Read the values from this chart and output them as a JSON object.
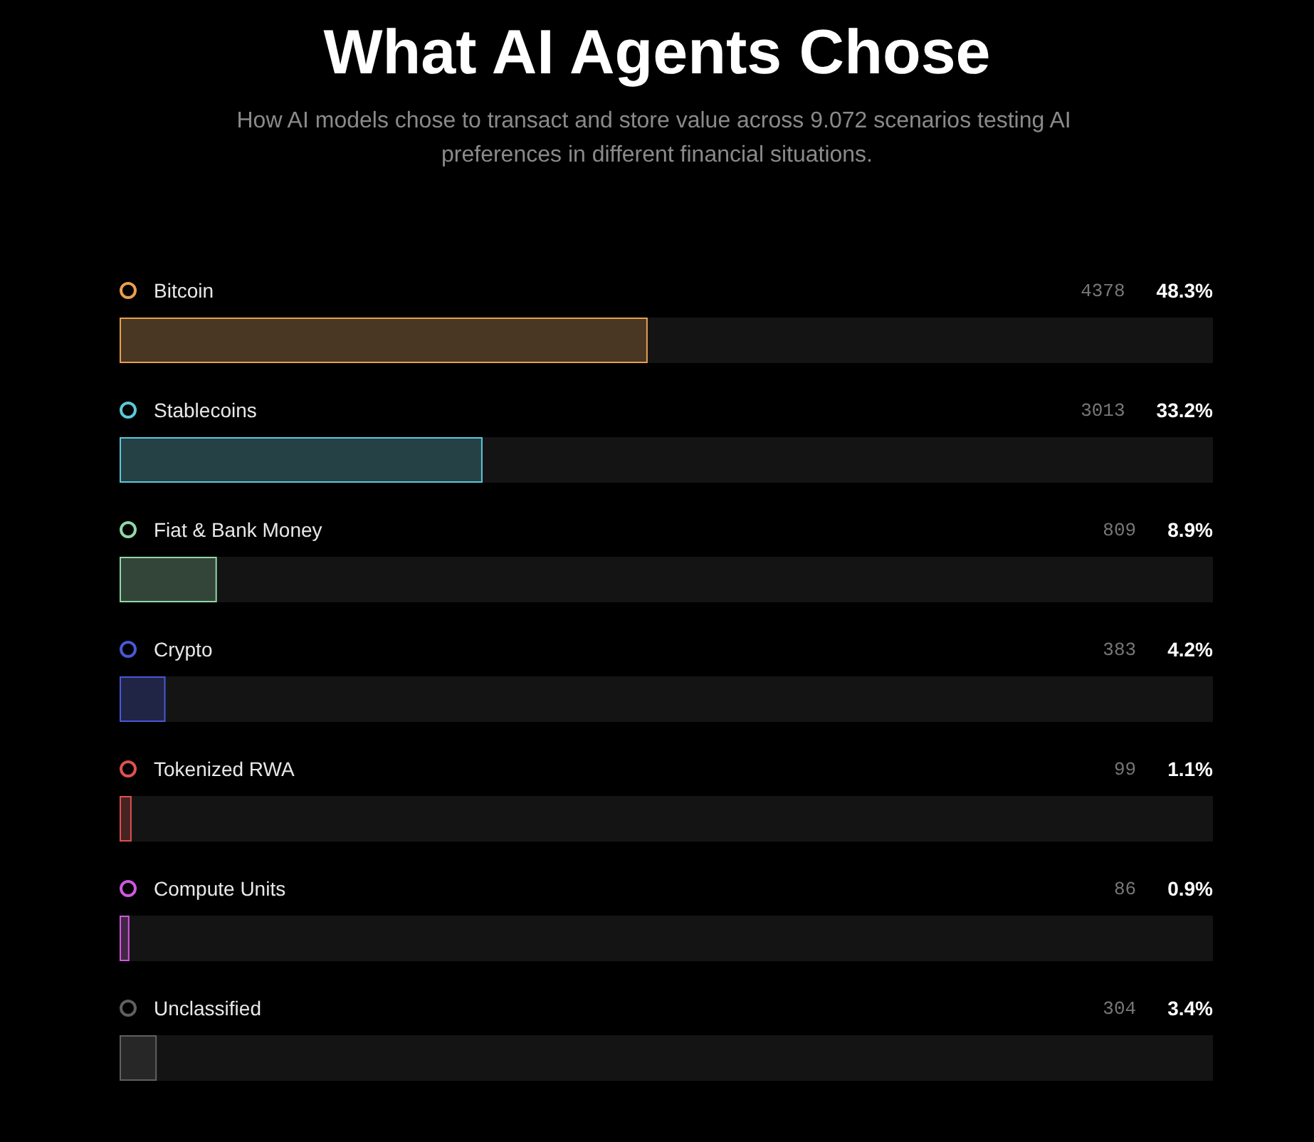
{
  "chart_data": {
    "type": "bar",
    "orientation": "horizontal",
    "title": "What AI Agents Chose",
    "subtitle": "How AI models chose to transact and store value across 9.072 scenarios testing AI preferences in different financial situations.",
    "categories": [
      "Bitcoin",
      "Stablecoins",
      "Fiat & Bank Money",
      "Crypto",
      "Tokenized RWA",
      "Compute Units",
      "Unclassified"
    ],
    "values": [
      48.3,
      33.2,
      8.9,
      4.2,
      1.1,
      0.9,
      3.4
    ],
    "colors": [
      "#e8a050",
      "#5cc8d8",
      "#90d8a8",
      "#4858d8",
      "#e05050",
      "#d058e0",
      "#606060"
    ],
    "value_labels": [
      "48.3%",
      "33.2%",
      "8.9%",
      "4.2%",
      "1.1%",
      "0.9%",
      "3.4%"
    ],
    "annotations": [
      "4378",
      "3013",
      "809",
      "383",
      "99",
      "86",
      "304"
    ],
    "tick_labels": false
  }
}
